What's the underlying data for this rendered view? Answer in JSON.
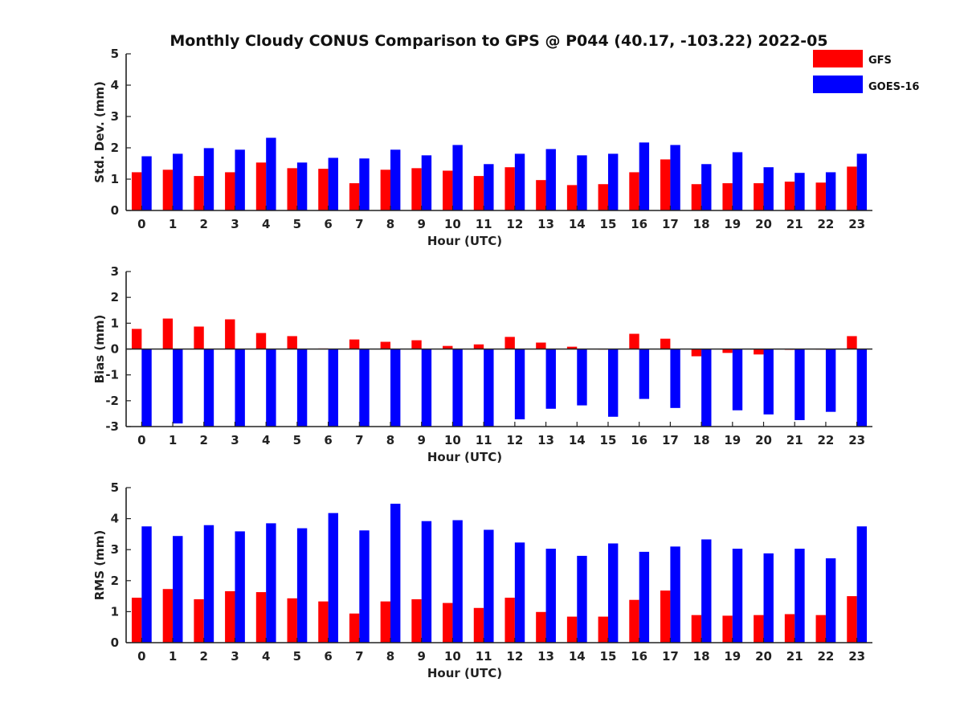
{
  "title": "Monthly Cloudy CONUS Comparison to GPS @ P044 (40.17, -103.22) 2022-05",
  "legend": [
    {
      "name": "GFS",
      "color": "#ff0000"
    },
    {
      "name": "GOES-16",
      "color": "#0000ff"
    }
  ],
  "chart_data": [
    {
      "type": "bar",
      "title": "Monthly Cloudy CONUS Comparison to GPS @ P044 (40.17, -103.22) 2022-05",
      "xlabel": "Hour (UTC)",
      "ylabel": "Std. Dev. (mm)",
      "ylim": [
        0,
        5
      ],
      "yticks": [
        0,
        1,
        2,
        3,
        4,
        5
      ],
      "categories": [
        "0",
        "1",
        "2",
        "3",
        "4",
        "5",
        "6",
        "7",
        "8",
        "9",
        "10",
        "11",
        "12",
        "13",
        "14",
        "15",
        "16",
        "17",
        "18",
        "19",
        "20",
        "21",
        "22",
        "23"
      ],
      "series": [
        {
          "name": "GFS",
          "color": "#ff0000",
          "values": [
            1.22,
            1.3,
            1.1,
            1.22,
            1.53,
            1.35,
            1.33,
            0.87,
            1.3,
            1.35,
            1.27,
            1.1,
            1.38,
            0.97,
            0.81,
            0.84,
            1.22,
            1.63,
            0.84,
            0.87,
            0.87,
            0.92,
            0.89,
            1.4
          ]
        },
        {
          "name": "GOES-16",
          "color": "#0000ff",
          "values": [
            1.73,
            1.81,
            1.99,
            1.94,
            2.32,
            1.53,
            1.68,
            1.66,
            1.94,
            1.76,
            2.09,
            1.48,
            1.81,
            1.96,
            1.76,
            1.81,
            2.17,
            2.09,
            1.48,
            1.86,
            1.38,
            1.2,
            1.22,
            1.81
          ]
        }
      ]
    },
    {
      "type": "bar",
      "xlabel": "Hour (UTC)",
      "ylabel": "Bias (mm)",
      "ylim": [
        -3,
        3
      ],
      "yticks": [
        -3,
        -2,
        -1,
        0,
        1,
        2,
        3
      ],
      "categories": [
        "0",
        "1",
        "2",
        "3",
        "4",
        "5",
        "6",
        "7",
        "8",
        "9",
        "10",
        "11",
        "12",
        "13",
        "14",
        "15",
        "16",
        "17",
        "18",
        "19",
        "20",
        "21",
        "22",
        "23"
      ],
      "series": [
        {
          "name": "GFS",
          "color": "#ff0000",
          "values": [
            0.78,
            1.18,
            0.87,
            1.15,
            0.62,
            0.5,
            0.02,
            0.37,
            0.28,
            0.34,
            0.12,
            0.18,
            0.47,
            0.25,
            0.09,
            0.0,
            0.59,
            0.4,
            -0.28,
            -0.15,
            -0.21,
            -0.03,
            0.0,
            0.5
          ]
        },
        {
          "name": "GOES-16",
          "color": "#0000ff",
          "values": [
            -3.0,
            -2.88,
            -3.0,
            -3.0,
            -3.0,
            -3.0,
            -3.0,
            -3.0,
            -3.0,
            -3.0,
            -3.0,
            -3.0,
            -2.72,
            -2.31,
            -2.18,
            -2.62,
            -1.93,
            -2.28,
            -3.0,
            -2.37,
            -2.53,
            -2.75,
            -2.43,
            -3.0
          ]
        }
      ]
    },
    {
      "type": "bar",
      "xlabel": "Hour (UTC)",
      "ylabel": "RMS (mm)",
      "ylim": [
        0,
        5
      ],
      "yticks": [
        0,
        1,
        2,
        3,
        4,
        5
      ],
      "categories": [
        "0",
        "1",
        "2",
        "3",
        "4",
        "5",
        "6",
        "7",
        "8",
        "9",
        "10",
        "11",
        "12",
        "13",
        "14",
        "15",
        "16",
        "17",
        "18",
        "19",
        "20",
        "21",
        "22",
        "23"
      ],
      "series": [
        {
          "name": "GFS",
          "color": "#ff0000",
          "values": [
            1.45,
            1.73,
            1.4,
            1.66,
            1.63,
            1.43,
            1.33,
            0.94,
            1.33,
            1.4,
            1.28,
            1.12,
            1.45,
            0.99,
            0.84,
            0.84,
            1.38,
            1.68,
            0.89,
            0.87,
            0.89,
            0.92,
            0.89,
            1.5
          ]
        },
        {
          "name": "GOES-16",
          "color": "#0000ff",
          "values": [
            3.75,
            3.44,
            3.79,
            3.59,
            3.85,
            3.69,
            4.18,
            3.62,
            4.48,
            3.92,
            3.95,
            3.64,
            3.23,
            3.03,
            2.8,
            3.2,
            2.93,
            3.1,
            3.33,
            3.03,
            2.88,
            3.03,
            2.72,
            3.75
          ]
        }
      ]
    }
  ]
}
